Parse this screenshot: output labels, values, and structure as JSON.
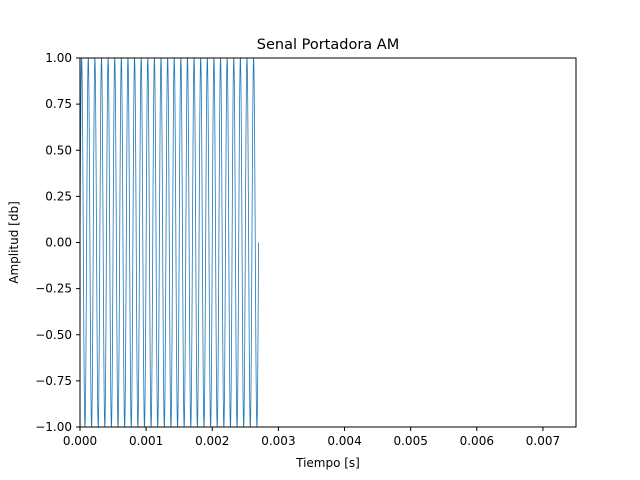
{
  "chart_data": {
    "type": "line",
    "title": "Senal Portadora AM",
    "xlabel": "Tiempo [s]",
    "ylabel": "Amplitud [db]",
    "xlim": [
      0,
      0.0075
    ],
    "ylim": [
      -1.0,
      1.0
    ],
    "x_ticks": [
      "0.000",
      "0.001",
      "0.002",
      "0.003",
      "0.004",
      "0.005",
      "0.006",
      "0.007"
    ],
    "x_tick_values": [
      0,
      0.001,
      0.002,
      0.003,
      0.004,
      0.005,
      0.006,
      0.007
    ],
    "y_ticks": [
      "−1.00",
      "−0.75",
      "−0.50",
      "−0.25",
      "0.00",
      "0.25",
      "0.50",
      "0.75",
      "1.00"
    ],
    "y_tick_values": [
      -1.0,
      -0.75,
      -0.5,
      -0.25,
      0,
      0.25,
      0.5,
      0.75,
      1.0
    ],
    "grid": false,
    "series": [
      {
        "function": "sin",
        "amplitude": 1.0,
        "frequency_hz": 10000,
        "x_start": 0,
        "x_end": 0.0027,
        "color": "#1f77b4"
      }
    ]
  }
}
